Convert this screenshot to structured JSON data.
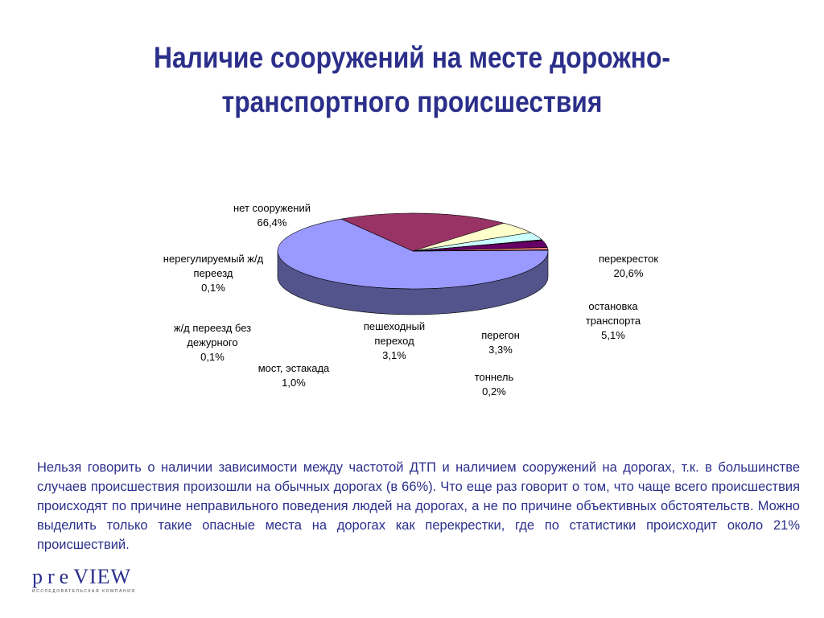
{
  "slide": {
    "title_line1": "Наличие сооружений на месте дорожно-",
    "title_line2": "транспортного происшествия",
    "caption": "Нельзя говорить о наличии зависимости между  частотой ДТП и наличием сооружений на дорогах, т.к. в большинстве случаев происшествия произошли на обычных дорогах (в 66%). Что еще раз говорит о том, что чаще всего происшествия происходят по причине неправильного поведения людей на дорогах, а не по причине объективных обстоятельств. Можно выделить только такие опасные места на дорогах как перекрестки, где по статистики происходит около 21% происшествий.",
    "logo_text": "preVIEW",
    "logo_subtitle": "исследовательская компания"
  },
  "chart_data": {
    "type": "pie",
    "style": "3d-exploded",
    "slices": [
      {
        "label": "нет сооружений",
        "value": 66.4,
        "value_text": "66,4%",
        "color": "#9999ff"
      },
      {
        "label": "перекресток",
        "value": 20.6,
        "value_text": "20,6%",
        "color": "#993366"
      },
      {
        "label": "остановка транспорта",
        "value": 5.1,
        "value_text": "5,1%",
        "color": "#ffffcc"
      },
      {
        "label": "перегон",
        "value": 3.3,
        "value_text": "3,3%",
        "color": "#ccffff"
      },
      {
        "label": "тоннель",
        "value": 0.2,
        "value_text": "0,2%",
        "color": "#660066"
      },
      {
        "label": "пешеходный переход",
        "value": 3.1,
        "value_text": "3,1%",
        "color": "#660066"
      },
      {
        "label": "мост, эстакада",
        "value": 1.0,
        "value_text": "1,0%",
        "color": "#ff8080"
      },
      {
        "label": "ж/д переезд без дежурного",
        "value": 0.1,
        "value_text": "0,1%",
        "color": "#0066cc"
      },
      {
        "label": "нерегулируемый ж/д переезд",
        "value": 0.1,
        "value_text": "0,1%",
        "color": "#ccccff"
      }
    ]
  }
}
